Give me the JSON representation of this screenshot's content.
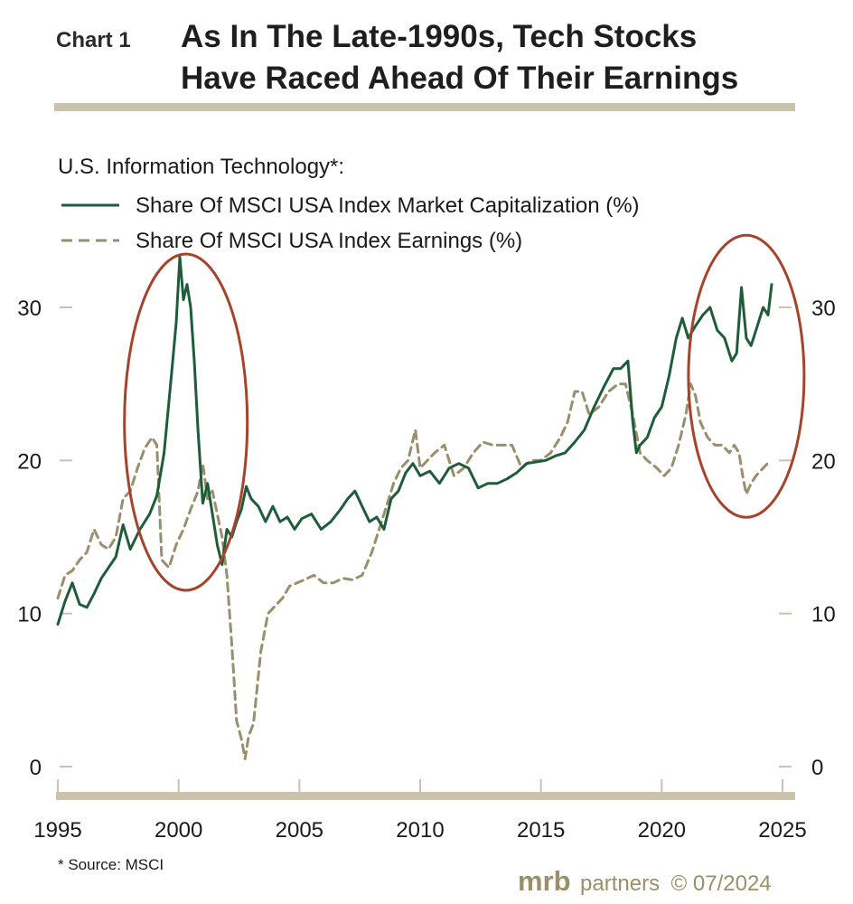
{
  "header": {
    "chart_label": "Chart 1",
    "title_line1": "As In The Late-1990s, Tech Stocks",
    "title_line2": "Have Raced Ahead Of Their Earnings"
  },
  "legend": {
    "heading": "U.S. Information Technology*:",
    "items": [
      "Share Of MSCI USA Index Market Capitalization (%)",
      "Share Of MSCI USA Index Earnings (%)"
    ]
  },
  "footnote": "* Source: MSCI",
  "brand": {
    "logo": "mrb",
    "name": "partners",
    "copyright": "© 07/2024"
  },
  "colors": {
    "market_cap": "#1e5c3a",
    "earnings": "#9a8f6c",
    "highlight_circle": "#a6432c",
    "rule": "#c9c3ad"
  },
  "chart_data": {
    "type": "line",
    "xlim": [
      1995,
      2025
    ],
    "ylim": [
      0,
      33.5
    ],
    "x_ticks": [
      "1995",
      "2000",
      "2005",
      "2010",
      "2015",
      "2020",
      "2025"
    ],
    "y_ticks_left": [
      "0",
      "10",
      "20",
      "30"
    ],
    "y_ticks_right": [
      "0",
      "10",
      "20",
      "30"
    ],
    "annotations": [
      {
        "type": "circle",
        "x_center": 2000.3,
        "y_center": 22.5
      },
      {
        "type": "circle",
        "x_center": 2023.5,
        "y_center": 25.5
      }
    ],
    "series": [
      {
        "name": "Share Of MSCI USA Index Market Capitalization (%)",
        "style": "solid",
        "x": [
          1995.0,
          1995.3,
          1995.6,
          1995.9,
          1996.2,
          1996.5,
          1996.8,
          1997.1,
          1997.4,
          1997.7,
          1998.0,
          1998.4,
          1998.8,
          1999.1,
          1999.4,
          1999.7,
          1999.9,
          2000.05,
          2000.2,
          2000.35,
          2000.5,
          2000.65,
          2000.8,
          2001.0,
          2001.2,
          2001.4,
          2001.6,
          2001.8,
          2002.0,
          2002.2,
          2002.4,
          2002.6,
          2002.8,
          2003.0,
          2003.3,
          2003.6,
          2003.9,
          2004.2,
          2004.5,
          2004.8,
          2005.1,
          2005.5,
          2005.9,
          2006.3,
          2006.7,
          2007.0,
          2007.3,
          2007.6,
          2007.9,
          2008.2,
          2008.5,
          2008.8,
          2009.1,
          2009.4,
          2009.7,
          2010.0,
          2010.4,
          2010.8,
          2011.2,
          2011.6,
          2012.0,
          2012.4,
          2012.8,
          2013.2,
          2013.6,
          2014.0,
          2014.4,
          2014.8,
          2015.2,
          2015.6,
          2016.0,
          2016.4,
          2016.8,
          2017.2,
          2017.6,
          2018.0,
          2018.3,
          2018.6,
          2018.8,
          2018.95,
          2019.1,
          2019.4,
          2019.7,
          2020.0,
          2020.3,
          2020.6,
          2020.85,
          2021.1,
          2021.4,
          2021.7,
          2022.0,
          2022.3,
          2022.6,
          2022.9,
          2023.1,
          2023.3,
          2023.5,
          2023.7,
          2024.0,
          2024.2,
          2024.4,
          2024.55
        ],
        "values": [
          9.3,
          10.8,
          12.0,
          10.6,
          10.4,
          11.3,
          12.3,
          13.0,
          13.7,
          15.8,
          14.2,
          15.5,
          16.5,
          17.7,
          20.5,
          25.5,
          29.0,
          33.3,
          30.5,
          31.5,
          30.0,
          26.5,
          22.0,
          17.2,
          18.5,
          16.5,
          14.5,
          13.2,
          15.5,
          15.0,
          16.0,
          16.8,
          18.3,
          17.5,
          17.0,
          16.0,
          17.0,
          16.0,
          16.3,
          15.5,
          16.2,
          16.5,
          15.5,
          16.0,
          16.8,
          17.5,
          18.0,
          17.0,
          16.0,
          16.3,
          15.5,
          17.5,
          18.0,
          19.2,
          19.8,
          19.0,
          19.3,
          18.5,
          19.5,
          19.8,
          19.5,
          18.2,
          18.5,
          18.5,
          18.8,
          19.2,
          19.8,
          19.9,
          20.0,
          20.3,
          20.5,
          21.2,
          22.0,
          23.5,
          24.8,
          26.0,
          26.0,
          26.5,
          22.5,
          20.5,
          21.0,
          21.5,
          22.8,
          23.5,
          25.5,
          28.0,
          29.3,
          28.0,
          28.8,
          29.5,
          30.0,
          28.5,
          28.0,
          26.5,
          27.0,
          31.3,
          28.0,
          27.5,
          29.0,
          30.0,
          29.5,
          31.5
        ]
      },
      {
        "name": "Share Of MSCI USA Index Earnings (%)",
        "style": "dashed",
        "x": [
          1995.0,
          1995.3,
          1995.6,
          1995.9,
          1996.2,
          1996.5,
          1996.8,
          1997.1,
          1997.4,
          1997.7,
          1998.0,
          1998.3,
          1998.6,
          1998.9,
          1999.1,
          1999.3,
          1999.6,
          1999.9,
          2000.2,
          2000.5,
          2000.8,
          2001.0,
          2001.2,
          2001.4,
          2001.6,
          2001.8,
          2002.0,
          2002.2,
          2002.4,
          2002.6,
          2002.75,
          2002.9,
          2003.1,
          2003.4,
          2003.7,
          2004.0,
          2004.3,
          2004.6,
          2004.9,
          2005.2,
          2005.6,
          2006.0,
          2006.4,
          2006.8,
          2007.2,
          2007.6,
          2008.0,
          2008.3,
          2008.6,
          2008.9,
          2009.2,
          2009.5,
          2009.8,
          2010.0,
          2010.3,
          2010.6,
          2011.0,
          2011.4,
          2011.8,
          2012.2,
          2012.6,
          2013.0,
          2013.4,
          2013.8,
          2014.2,
          2014.6,
          2015.0,
          2015.4,
          2015.8,
          2016.1,
          2016.4,
          2016.7,
          2017.0,
          2017.4,
          2017.8,
          2018.2,
          2018.5,
          2018.8,
          2019.1,
          2019.4,
          2019.8,
          2020.1,
          2020.4,
          2020.7,
          2021.0,
          2021.2,
          2021.4,
          2021.6,
          2021.9,
          2022.2,
          2022.5,
          2022.8,
          2023.0,
          2023.2,
          2023.35,
          2023.5,
          2023.7,
          2023.9,
          2024.2,
          2024.5
        ],
        "values": [
          11.0,
          12.5,
          12.8,
          13.5,
          14.0,
          15.5,
          14.5,
          14.2,
          15.0,
          17.5,
          18.0,
          19.5,
          20.8,
          21.5,
          21.0,
          13.5,
          13.0,
          14.5,
          15.5,
          16.8,
          18.0,
          19.8,
          17.5,
          18.0,
          16.5,
          15.0,
          12.5,
          8.0,
          3.0,
          1.8,
          0.5,
          2.0,
          2.8,
          7.5,
          10.0,
          10.5,
          11.0,
          11.8,
          12.0,
          12.2,
          12.5,
          12.0,
          12.0,
          12.3,
          12.2,
          12.5,
          14.0,
          15.5,
          17.0,
          18.5,
          19.5,
          20.0,
          22.0,
          19.5,
          20.0,
          20.5,
          21.0,
          19.0,
          19.5,
          20.5,
          21.2,
          21.0,
          21.0,
          21.0,
          19.5,
          20.0,
          20.0,
          20.5,
          21.5,
          22.5,
          24.5,
          24.5,
          23.0,
          23.5,
          24.5,
          25.0,
          25.0,
          23.0,
          20.5,
          20.0,
          19.5,
          19.0,
          19.5,
          21.0,
          23.0,
          25.0,
          24.2,
          22.5,
          21.5,
          21.0,
          21.0,
          20.5,
          21.0,
          20.5,
          19.0,
          17.8,
          18.5,
          19.0,
          19.5,
          20.0
        ]
      }
    ]
  }
}
